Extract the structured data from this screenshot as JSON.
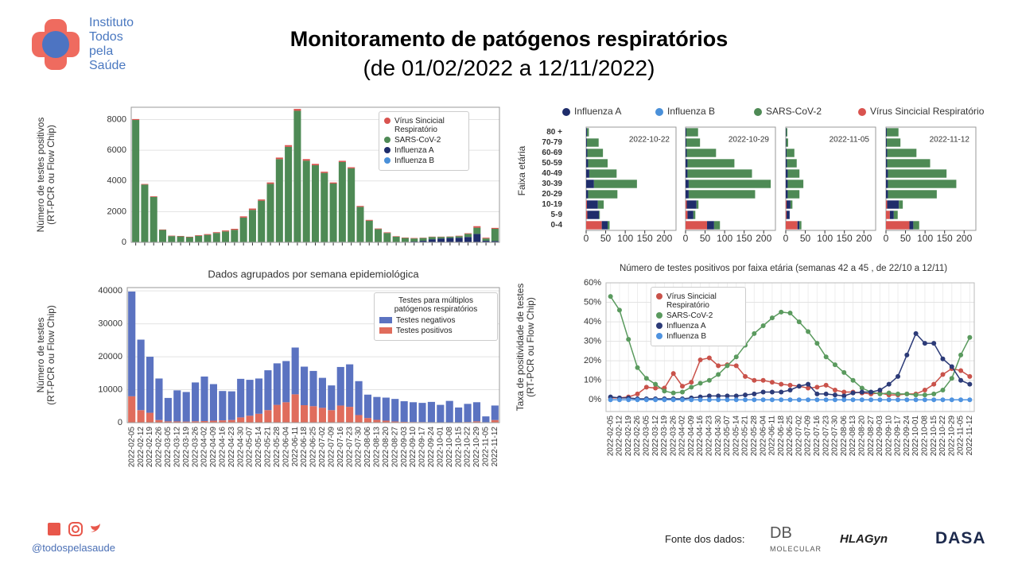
{
  "header": {
    "title": "Monitoramento de patógenos respiratórios",
    "subtitle": "(de 01/02/2022 a 12/11/2022)",
    "logo": [
      "Instituto",
      "Todos",
      "pela",
      "Saúde"
    ]
  },
  "footer": {
    "handle": "@todospelasaude",
    "source": "Fonte dos dados:",
    "logos": [
      "DB",
      "MOLECULAR",
      "HLAGyn",
      "DASA"
    ]
  },
  "chart_data": [
    {
      "type": "stacked_bar",
      "ylabel": [
        "Número de testes positivos",
        "(RT-PCR ou Flow Chip)"
      ],
      "ylim": [
        0,
        8800
      ],
      "yticks": [
        0,
        2000,
        4000,
        6000,
        8000
      ],
      "grid": true,
      "legend": "upper right",
      "series": [
        {
          "name": "Vírus Sincicial Respiratório",
          "color": "#d9534f",
          "values": [
            60,
            40,
            40,
            30,
            30,
            30,
            30,
            40,
            50,
            50,
            60,
            70,
            80,
            90,
            80,
            90,
            100,
            110,
            120,
            100,
            90,
            80,
            70,
            80,
            70,
            60,
            50,
            40,
            40,
            30,
            30,
            30,
            20,
            20,
            20,
            20,
            30,
            40,
            100,
            50,
            60
          ]
        },
        {
          "name": "SARS-CoV-2",
          "color": "#4e8a55",
          "values": [
            7950,
            3750,
            2950,
            800,
            400,
            380,
            330,
            420,
            480,
            600,
            700,
            800,
            1600,
            2100,
            2700,
            3800,
            5400,
            6200,
            8550,
            5300,
            5000,
            4500,
            3800,
            5200,
            4800,
            2300,
            1400,
            850,
            600,
            350,
            250,
            200,
            180,
            150,
            100,
            80,
            100,
            200,
            400,
            150,
            800
          ]
        },
        {
          "name": "Influenza A",
          "color": "#1f2d6b",
          "values": [
            20,
            10,
            10,
            5,
            5,
            5,
            5,
            5,
            5,
            10,
            10,
            10,
            10,
            10,
            10,
            10,
            20,
            20,
            20,
            20,
            20,
            20,
            30,
            30,
            20,
            10,
            10,
            10,
            10,
            20,
            30,
            50,
            100,
            200,
            250,
            280,
            300,
            350,
            550,
            100,
            80
          ]
        },
        {
          "name": "Influenza B",
          "color": "#4a90d9",
          "values": [
            0,
            0,
            0,
            0,
            0,
            0,
            0,
            0,
            0,
            0,
            0,
            0,
            0,
            0,
            0,
            0,
            0,
            0,
            0,
            0,
            0,
            0,
            0,
            0,
            0,
            0,
            0,
            0,
            0,
            0,
            0,
            0,
            0,
            0,
            0,
            0,
            0,
            0,
            0,
            0,
            0
          ]
        }
      ]
    },
    {
      "type": "stacked_bar",
      "title": "Dados agrupados por semana epidemiológica",
      "ylabel": [
        "Número de testes",
        "(RT-PCR ou Flow Chip)"
      ],
      "categories": [
        "2022-02-05",
        "2022-02-12",
        "2022-02-19",
        "2022-02-26",
        "2022-03-05",
        "2022-03-12",
        "2022-03-19",
        "2022-03-26",
        "2022-04-02",
        "2022-04-09",
        "2022-04-16",
        "2022-04-23",
        "2022-04-30",
        "2022-05-07",
        "2022-05-14",
        "2022-05-21",
        "2022-05-28",
        "2022-06-04",
        "2022-06-11",
        "2022-06-18",
        "2022-06-25",
        "2022-07-02",
        "2022-07-09",
        "2022-07-16",
        "2022-07-23",
        "2022-07-30",
        "2022-08-06",
        "2022-08-13",
        "2022-08-20",
        "2022-08-27",
        "2022-09-03",
        "2022-09-10",
        "2022-09-17",
        "2022-09-24",
        "2022-10-01",
        "2022-10-08",
        "2022-10-15",
        "2022-10-22",
        "2022-10-29",
        "2022-11-05",
        "2022-11-12"
      ],
      "ylim": [
        0,
        41000
      ],
      "yticks": [
        0,
        10000,
        20000,
        30000,
        40000
      ],
      "grid": true,
      "legend": "upper right",
      "legend_title": "Testes para múltiplos patógenos respiratórios",
      "series": [
        {
          "name": "Testes negativos",
          "color": "#5b73c1",
          "values": [
            31800,
            21400,
            17000,
            12600,
            7100,
            9420,
            8970,
            11780,
            13520,
            11100,
            8900,
            8700,
            11700,
            10900,
            10700,
            12100,
            12600,
            12500,
            14200,
            11700,
            10700,
            9100,
            7500,
            11700,
            12900,
            10300,
            7100,
            6950,
            7000,
            6850,
            6250,
            6000,
            5820,
            6150,
            5300,
            6520,
            4500,
            5500,
            5800,
            1750,
            4400
          ]
        },
        {
          "name": "Testes positivos",
          "color": "#e06c5c",
          "values": [
            8000,
            3800,
            3000,
            800,
            400,
            380,
            330,
            420,
            480,
            600,
            700,
            800,
            1600,
            2100,
            2700,
            3800,
            5400,
            6200,
            8600,
            5300,
            5000,
            4500,
            3800,
            5200,
            4800,
            2300,
            1400,
            850,
            600,
            350,
            250,
            200,
            180,
            150,
            100,
            80,
            100,
            200,
            400,
            150,
            800
          ]
        }
      ]
    },
    {
      "type": "barh_panels",
      "title": "Número de testes positivos por faixa etária (semanas 42 a 45 , de 22/10 a 12/11)",
      "ylabel": "Faixa etária",
      "categories": [
        "0-4",
        "5-9",
        "10-19",
        "20-29",
        "30-39",
        "40-49",
        "50-59",
        "60-69",
        "70-79",
        "80 +"
      ],
      "xlim": [
        0,
        230
      ],
      "xticks": [
        0,
        50,
        100,
        150,
        200
      ],
      "series": [
        {
          "name": "Influenza A",
          "color": "#1f2d6b"
        },
        {
          "name": "Influenza B",
          "color": "#4a90d9"
        },
        {
          "name": "SARS-CoV-2",
          "color": "#4e8a55"
        },
        {
          "name": "Vírus Sincicial Respiratório",
          "color": "#d9534f"
        }
      ],
      "panels": [
        {
          "title": "2022-10-22",
          "values": [
            [
              15,
              30,
              28,
              5,
              20,
              8,
              5,
              3,
              2,
              2
            ],
            [
              0,
              0,
              0,
              0,
              0,
              0,
              0,
              0,
              0,
              0
            ],
            [
              5,
              2,
              15,
              75,
              110,
              70,
              50,
              40,
              30,
              5
            ],
            [
              40,
              3,
              2,
              0,
              0,
              0,
              0,
              0,
              0,
              0
            ]
          ]
        },
        {
          "title": "2022-10-29",
          "values": [
            [
              18,
              15,
              25,
              8,
              8,
              5,
              5,
              3,
              2,
              2
            ],
            [
              0,
              0,
              0,
              0,
              0,
              0,
              0,
              0,
              0,
              0
            ],
            [
              15,
              5,
              5,
              170,
              210,
              165,
              120,
              75,
              35,
              30
            ],
            [
              55,
              5,
              3,
              0,
              0,
              0,
              0,
              0,
              0,
              0
            ]
          ]
        },
        {
          "title": "2022-11-05",
          "values": [
            [
              5,
              8,
              10,
              5,
              5,
              5,
              3,
              2,
              1,
              1
            ],
            [
              0,
              0,
              0,
              0,
              0,
              0,
              0,
              0,
              0,
              0
            ],
            [
              5,
              0,
              5,
              30,
              40,
              30,
              25,
              20,
              5,
              3
            ],
            [
              30,
              2,
              2,
              0,
              0,
              0,
              0,
              0,
              0,
              0
            ]
          ]
        },
        {
          "title": "2022-11-12",
          "values": [
            [
              10,
              10,
              30,
              5,
              5,
              5,
              3,
              3,
              2,
              2
            ],
            [
              0,
              0,
              0,
              0,
              0,
              0,
              0,
              0,
              0,
              0
            ],
            [
              15,
              10,
              10,
              125,
              175,
              150,
              110,
              75,
              35,
              30
            ],
            [
              60,
              10,
              3,
              0,
              0,
              0,
              0,
              0,
              0,
              0
            ]
          ]
        }
      ]
    },
    {
      "type": "line",
      "ylabel": [
        "Taxa de positividade de testes",
        "(RT-PCR ou Flow Chip)"
      ],
      "categories": [
        "2022-02-05",
        "2022-02-12",
        "2022-02-19",
        "2022-02-26",
        "2022-03-05",
        "2022-03-12",
        "2022-03-19",
        "2022-03-26",
        "2022-04-02",
        "2022-04-09",
        "2022-04-16",
        "2022-04-23",
        "2022-04-30",
        "2022-05-07",
        "2022-05-14",
        "2022-05-21",
        "2022-05-28",
        "2022-06-04",
        "2022-06-11",
        "2022-06-18",
        "2022-06-25",
        "2022-07-02",
        "2022-07-09",
        "2022-07-16",
        "2022-07-23",
        "2022-07-30",
        "2022-08-06",
        "2022-08-13",
        "2022-08-20",
        "2022-08-27",
        "2022-09-03",
        "2022-09-10",
        "2022-09-17",
        "2022-09-24",
        "2022-10-01",
        "2022-10-08",
        "2022-10-15",
        "2022-10-22",
        "2022-10-29",
        "2022-11-05",
        "2022-11-12"
      ],
      "ylim": [
        -6,
        60
      ],
      "yticks": [
        {
          "value": 0,
          "label": "0%"
        },
        {
          "value": 10,
          "label": "10%"
        },
        {
          "value": 20,
          "label": "20%"
        },
        {
          "value": 30,
          "label": "30%"
        },
        {
          "value": 40,
          "label": "40%"
        },
        {
          "value": 50,
          "label": "50%"
        },
        {
          "value": 60,
          "label": "60%"
        }
      ],
      "grid": true,
      "legend": "upper left",
      "series": [
        {
          "name": "Vírus Sincicial Respiratório",
          "color": "#c9524a",
          "values": [
            1,
            1,
            1.5,
            3,
            6.5,
            6,
            6,
            13.5,
            7,
            9,
            20.5,
            21.5,
            17.5,
            18,
            17.5,
            12,
            10,
            10,
            9,
            8,
            7.5,
            7,
            6,
            6.5,
            7.5,
            5,
            4,
            4,
            3.5,
            3,
            3.5,
            2.5,
            2.5,
            3,
            3,
            5,
            8,
            13,
            16,
            15,
            12
          ]
        },
        {
          "name": "SARS-CoV-2",
          "color": "#5a9a5e",
          "values": [
            53,
            46,
            31,
            16.5,
            11,
            8,
            4.5,
            3.5,
            4,
            6.5,
            8.5,
            10,
            13,
            17.5,
            22,
            28,
            34,
            38,
            42,
            45,
            44.5,
            40,
            35,
            29,
            22,
            18,
            14,
            10,
            6,
            4,
            3,
            3.5,
            3,
            3,
            2.5,
            2.5,
            3,
            5,
            11,
            23,
            32
          ]
        },
        {
          "name": "Influenza A",
          "color": "#2c3b78",
          "values": [
            1.5,
            1,
            1,
            0.5,
            0.5,
            0.5,
            0.5,
            0.5,
            0.5,
            1,
            1.5,
            2,
            2,
            2,
            2,
            2.5,
            3,
            4,
            4,
            4,
            5,
            7,
            8,
            3,
            3,
            2.5,
            2,
            3.5,
            4,
            4,
            5,
            8,
            12,
            23,
            34,
            29,
            29,
            21,
            17,
            10,
            8
          ]
        },
        {
          "name": "Influenza B",
          "color": "#4f93e0",
          "values": [
            0,
            0,
            0,
            0,
            0,
            0,
            0,
            0,
            0,
            0,
            0,
            0,
            0,
            0,
            0,
            0,
            0,
            0,
            0,
            0,
            0,
            0,
            0,
            0,
            0,
            0,
            0,
            0,
            0,
            0,
            0,
            0,
            0,
            0,
            0,
            0,
            0,
            0,
            0,
            0,
            0
          ]
        }
      ]
    }
  ]
}
